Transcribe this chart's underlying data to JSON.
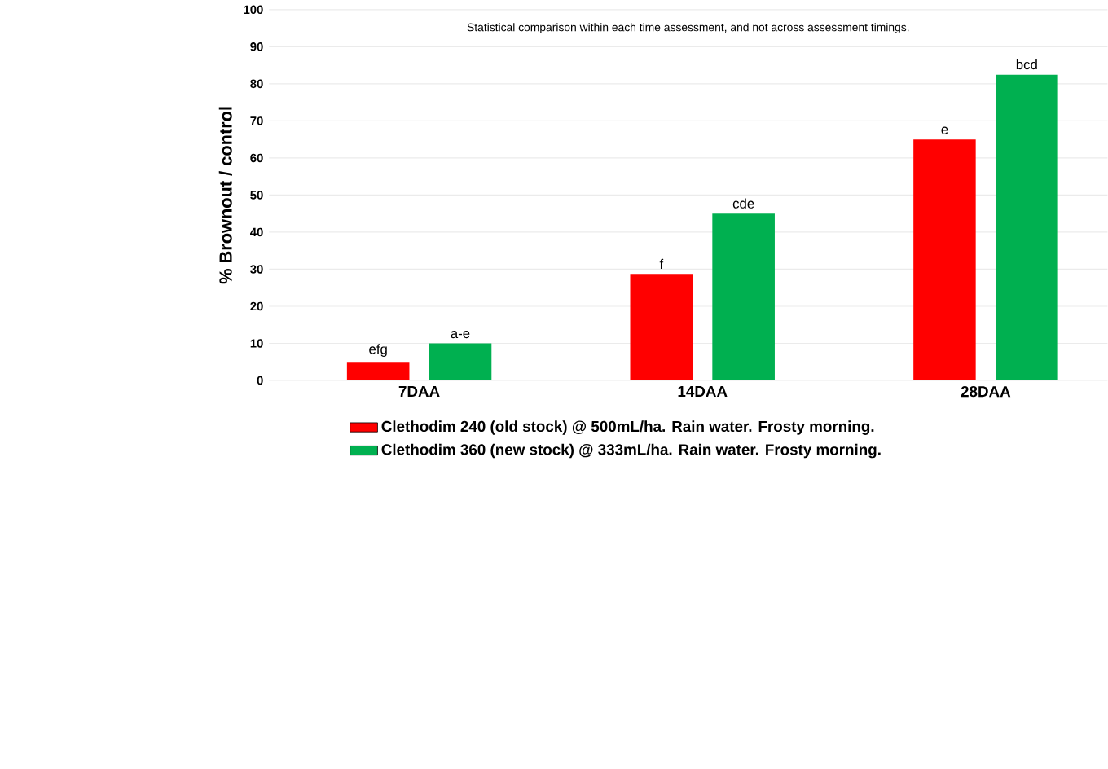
{
  "chart_data": {
    "type": "bar",
    "ylabel": "% Brownout / control",
    "annotations": [
      "Statistical comparison within each time assessment, and not across assessment timings."
    ],
    "categories": [
      "7DAA",
      "14DAA",
      "28DAA"
    ],
    "series": [
      {
        "name": "Clethodim 240 (old stock) @ 500mL/ha. Rain water. Frosty morning.",
        "color": "#ff0000",
        "values": [
          5,
          28.7,
          65
        ],
        "value_labels": [
          "efg",
          "f",
          "e"
        ]
      },
      {
        "name": "Clethodim 360 (new stock) @ 333mL/ha. Rain water. Frosty morning.",
        "color": "#00b050",
        "values": [
          10,
          45,
          82.5
        ],
        "value_labels": [
          "a-e",
          "cde",
          "bcd"
        ]
      }
    ],
    "ylim": [
      0,
      100
    ],
    "yticks": [
      0,
      10,
      20,
      30,
      40,
      50,
      60,
      70,
      80,
      90,
      100
    ],
    "grid": "y",
    "legend": "bottom"
  }
}
